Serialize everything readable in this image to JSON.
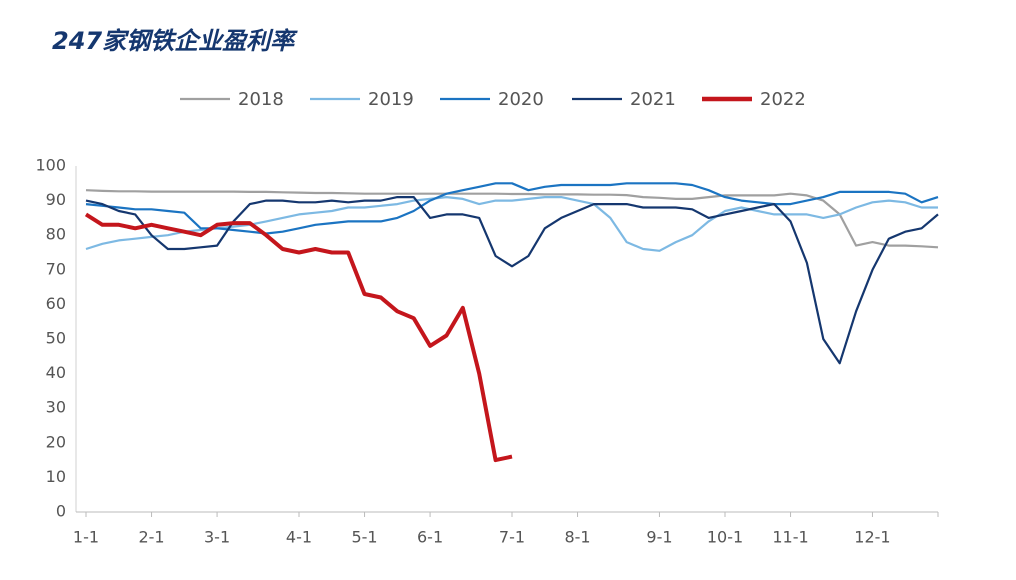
{
  "chart_data": {
    "type": "line",
    "title": "247家钢铁企业盈利率",
    "categories": [
      "1-1",
      null,
      null,
      null,
      "2-1",
      null,
      null,
      null,
      "3-1",
      null,
      null,
      null,
      null,
      "4-1",
      null,
      null,
      null,
      "5-1",
      null,
      null,
      null,
      "6-1",
      null,
      null,
      null,
      null,
      "7-1",
      null,
      null,
      null,
      "8-1",
      null,
      null,
      null,
      null,
      "9-1",
      null,
      null,
      null,
      "10-1",
      null,
      null,
      null,
      "11-1",
      null,
      null,
      null,
      null,
      "12-1",
      null,
      null,
      null,
      null
    ],
    "ylim": [
      0,
      100
    ],
    "yticks": [
      0,
      10,
      20,
      30,
      40,
      50,
      60,
      70,
      80,
      90,
      100
    ],
    "series": [
      {
        "name": "2018",
        "color": "#a0a0a0",
        "values": [
          93,
          92.8,
          92.7,
          92.7,
          92.6,
          92.6,
          92.6,
          92.6,
          92.6,
          92.6,
          92.5,
          92.5,
          92.4,
          92.3,
          92.2,
          92.2,
          92.1,
          92,
          92,
          92,
          92,
          92,
          92,
          92,
          92,
          92,
          91.9,
          91.9,
          91.8,
          91.8,
          91.8,
          91.7,
          91.7,
          91.6,
          91,
          90.8,
          90.5,
          90.5,
          91,
          91.5,
          91.5,
          91.5,
          91.5,
          92,
          91.5,
          90,
          86,
          77,
          78,
          77,
          77,
          76.8,
          76.5
        ]
      },
      {
        "name": "2019",
        "color": "#7db9e3",
        "values": [
          76,
          77.5,
          78.5,
          79,
          79.5,
          80,
          81,
          81.5,
          82,
          82.5,
          83,
          84,
          85,
          86,
          86.5,
          87,
          88,
          88,
          88.5,
          89,
          90,
          90.5,
          91,
          90.5,
          89,
          90,
          90,
          90.5,
          91,
          91,
          90,
          89,
          85,
          78,
          76,
          75.5,
          78,
          80,
          84,
          87,
          88,
          87,
          86,
          86,
          86,
          85,
          86,
          88,
          89.5,
          90,
          89.5,
          88,
          88
        ]
      },
      {
        "name": "2020",
        "color": "#1b74c2",
        "values": [
          89,
          88.5,
          88,
          87.5,
          87.5,
          87,
          86.5,
          82,
          82,
          81.5,
          81,
          80.5,
          81,
          82,
          83,
          83.5,
          84,
          84,
          84,
          85,
          87,
          90,
          92,
          93,
          94,
          95,
          95,
          93,
          94,
          94.5,
          94.5,
          94.5,
          94.5,
          95,
          95,
          95,
          95,
          94.5,
          93,
          91,
          90,
          89.5,
          89,
          89,
          90,
          91,
          92.5,
          92.5,
          92.5,
          92.5,
          92,
          89.5,
          91
        ]
      },
      {
        "name": "2021",
        "color": "#15376f",
        "values": [
          90,
          89,
          87,
          86,
          80,
          76,
          76,
          76.5,
          77,
          84,
          89,
          90,
          90,
          89.5,
          89.5,
          90,
          89.5,
          90,
          90,
          91,
          91,
          85,
          86,
          86,
          85,
          74,
          71,
          74,
          82,
          85,
          87,
          89,
          89,
          89,
          88,
          88,
          88,
          87.5,
          85,
          86,
          87,
          88,
          89,
          84,
          72,
          50,
          43,
          58,
          70,
          79,
          81,
          82,
          86
        ]
      },
      {
        "name": "2022",
        "color": "#c4161c",
        "values": [
          86,
          83,
          83,
          82,
          83,
          82,
          81,
          80,
          83,
          83.5,
          83.5,
          80,
          76,
          75,
          76,
          75,
          75,
          63,
          62,
          58,
          56,
          48,
          51,
          59,
          40,
          15,
          16,
          null,
          null,
          null,
          null,
          null,
          null,
          null,
          null,
          null,
          null,
          null,
          null,
          null,
          null,
          null,
          null,
          null,
          null,
          null,
          null,
          null,
          null,
          null,
          null,
          null,
          null
        ]
      }
    ]
  }
}
